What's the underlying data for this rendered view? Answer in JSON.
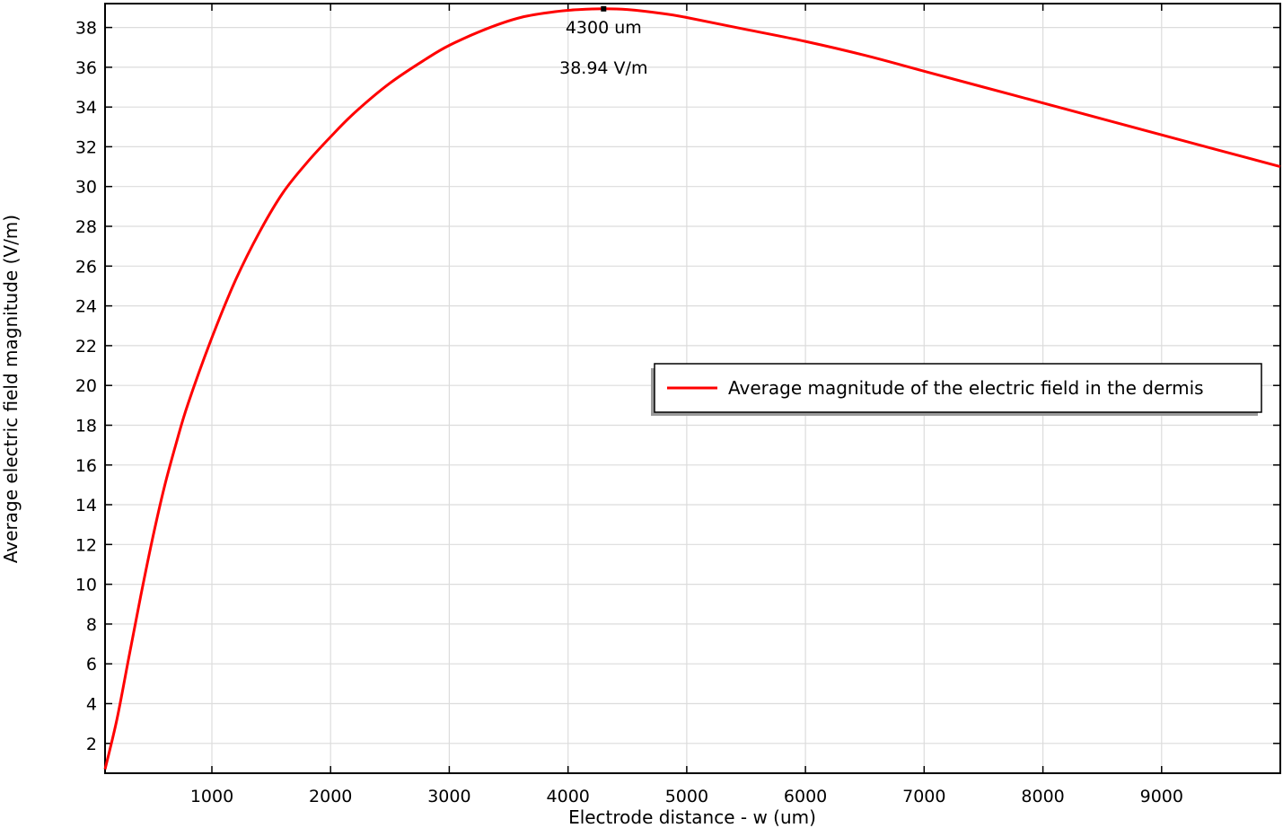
{
  "chart_data": {
    "type": "line",
    "xlabel": "Electrode distance - w (um)",
    "ylabel": "Average electric field magnitude (V/m)",
    "xlim": [
      100,
      10000
    ],
    "ylim": [
      0.5,
      39.2
    ],
    "x_ticks": [
      1000,
      2000,
      3000,
      4000,
      5000,
      6000,
      7000,
      8000,
      9000
    ],
    "y_ticks": [
      2,
      4,
      6,
      8,
      10,
      12,
      14,
      16,
      18,
      20,
      22,
      24,
      26,
      28,
      30,
      32,
      34,
      36,
      38
    ],
    "grid": true,
    "legend_position": "center-right",
    "series": [
      {
        "name": "Average magnitude of the electric field in the dermis",
        "color": "#ff0000",
        "x": [
          100,
          200,
          300,
          400,
          500,
          600,
          700,
          800,
          1000,
          1200,
          1400,
          1600,
          1800,
          2000,
          2200,
          2500,
          2800,
          3000,
          3300,
          3600,
          3900,
          4100,
          4300,
          4500,
          4800,
          5000,
          5500,
          6000,
          6500,
          7000,
          7500,
          8000,
          8500,
          9000,
          9500,
          10000
        ],
        "y": [
          0.7,
          3.2,
          6.3,
          9.4,
          12.3,
          14.9,
          17.1,
          19.1,
          22.4,
          25.3,
          27.7,
          29.7,
          31.2,
          32.5,
          33.7,
          35.2,
          36.4,
          37.1,
          37.9,
          38.5,
          38.8,
          38.9,
          38.94,
          38.9,
          38.7,
          38.5,
          37.9,
          37.3,
          36.6,
          35.8,
          35.0,
          34.2,
          33.4,
          32.6,
          31.8,
          31.0
        ]
      }
    ],
    "annotations": {
      "marker": {
        "x": 4300,
        "y": 38.94
      },
      "x_text": "4300 um",
      "y_text": "38.94 V/m"
    }
  }
}
